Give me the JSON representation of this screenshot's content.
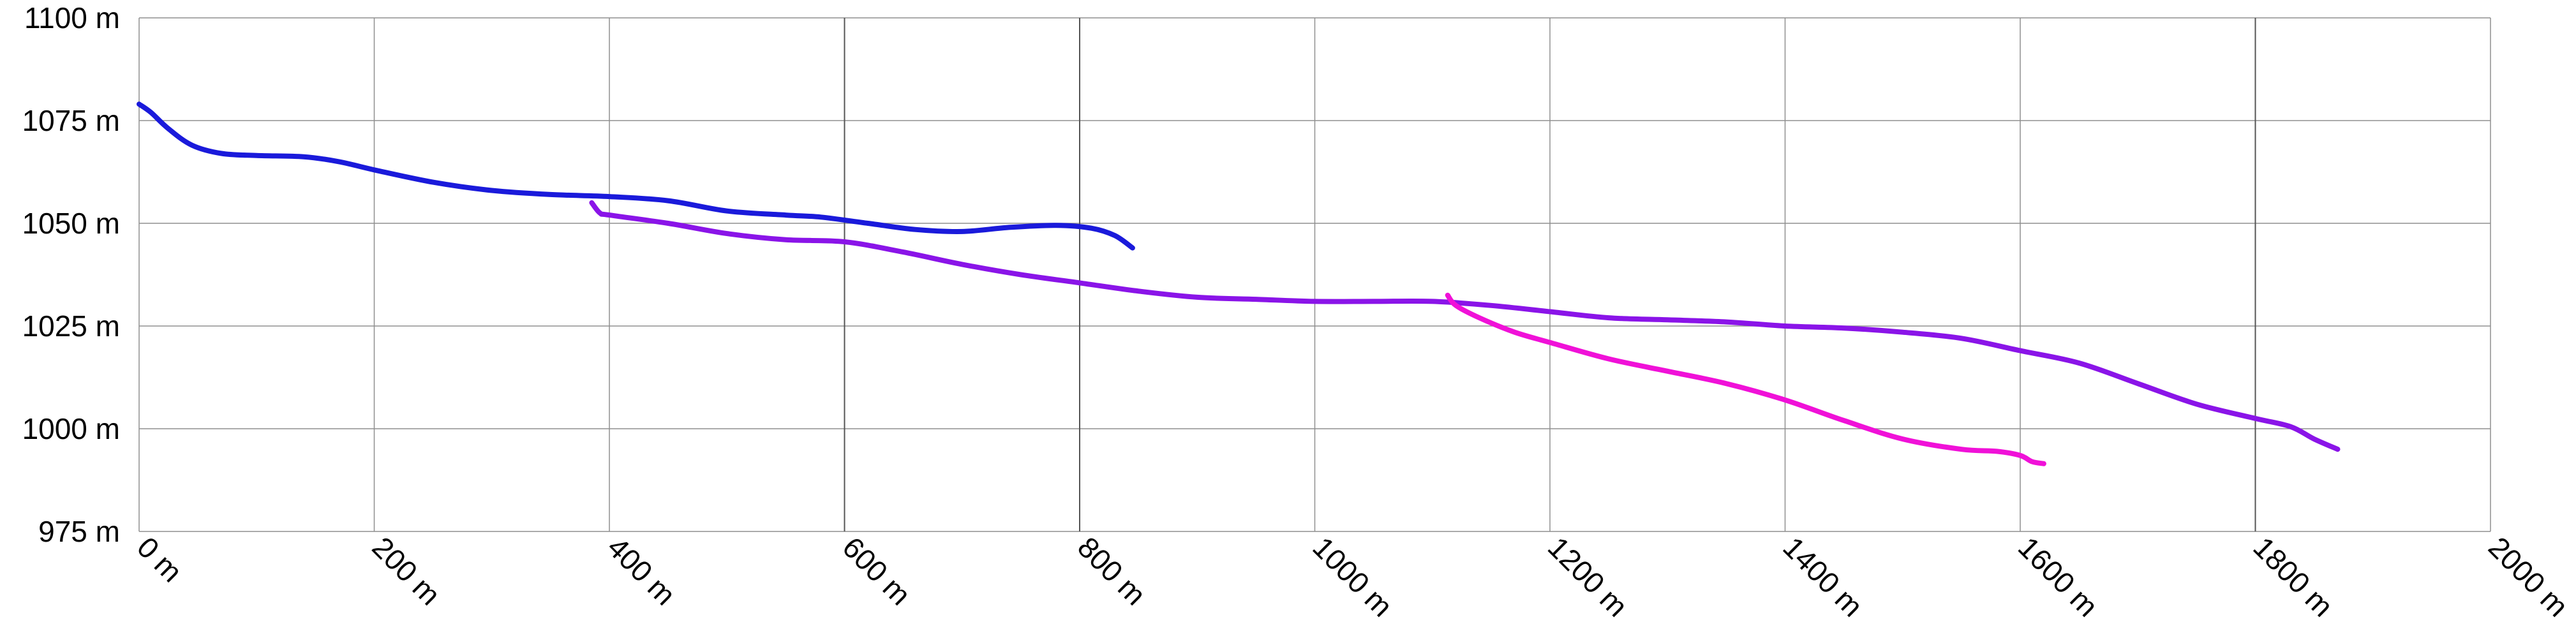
{
  "chart_data": {
    "type": "line",
    "title": "",
    "xlabel": "",
    "ylabel": "",
    "xlim": [
      0,
      2000
    ],
    "ylim": [
      975,
      1100
    ],
    "grid": true,
    "legend": "none",
    "x_ticks": [
      {
        "value": 0,
        "label": "0 m"
      },
      {
        "value": 200,
        "label": "200 m"
      },
      {
        "value": 400,
        "label": "400 m"
      },
      {
        "value": 600,
        "label": "600 m"
      },
      {
        "value": 800,
        "label": "800 m"
      },
      {
        "value": 1000,
        "label": "1000 m"
      },
      {
        "value": 1200,
        "label": "1200 m"
      },
      {
        "value": 1400,
        "label": "1400 m"
      },
      {
        "value": 1600,
        "label": "1600 m"
      },
      {
        "value": 1800,
        "label": "1800 m"
      },
      {
        "value": 2000,
        "label": "2000 m"
      }
    ],
    "y_ticks": [
      {
        "value": 975,
        "label": "975 m"
      },
      {
        "value": 1000,
        "label": "1000 m"
      },
      {
        "value": 1025,
        "label": "1025 m"
      },
      {
        "value": 1050,
        "label": "1050 m"
      },
      {
        "value": 1075,
        "label": "1075 m"
      },
      {
        "value": 1100,
        "label": "1100 m"
      }
    ],
    "series": [
      {
        "color": "#1a1adb",
        "points": [
          [
            0,
            1079
          ],
          [
            10,
            1077
          ],
          [
            25,
            1073
          ],
          [
            45,
            1069
          ],
          [
            70,
            1067
          ],
          [
            100,
            1066.5
          ],
          [
            140,
            1066.2
          ],
          [
            170,
            1065
          ],
          [
            200,
            1063
          ],
          [
            250,
            1060
          ],
          [
            300,
            1058
          ],
          [
            350,
            1057
          ],
          [
            400,
            1056.5
          ],
          [
            450,
            1055.5
          ],
          [
            500,
            1053
          ],
          [
            550,
            1052
          ],
          [
            580,
            1051.5
          ],
          [
            620,
            1050
          ],
          [
            660,
            1048.5
          ],
          [
            700,
            1048
          ],
          [
            740,
            1049
          ],
          [
            780,
            1049.5
          ],
          [
            810,
            1048.8
          ],
          [
            830,
            1047
          ],
          [
            845,
            1044
          ]
        ]
      },
      {
        "color": "#8a14e8",
        "points": [
          [
            385,
            1055
          ],
          [
            392,
            1052.5
          ],
          [
            400,
            1052
          ],
          [
            450,
            1050
          ],
          [
            500,
            1047.5
          ],
          [
            550,
            1046
          ],
          [
            600,
            1045.5
          ],
          [
            650,
            1043
          ],
          [
            700,
            1040
          ],
          [
            750,
            1037.5
          ],
          [
            800,
            1035.5
          ],
          [
            850,
            1033.5
          ],
          [
            900,
            1032
          ],
          [
            950,
            1031.5
          ],
          [
            1000,
            1031
          ],
          [
            1050,
            1031
          ],
          [
            1100,
            1031
          ],
          [
            1150,
            1030
          ],
          [
            1200,
            1028.5
          ],
          [
            1250,
            1027
          ],
          [
            1300,
            1026.5
          ],
          [
            1350,
            1026
          ],
          [
            1400,
            1025
          ],
          [
            1450,
            1024.5
          ],
          [
            1500,
            1023.5
          ],
          [
            1550,
            1022
          ],
          [
            1600,
            1019
          ],
          [
            1650,
            1016
          ],
          [
            1700,
            1011
          ],
          [
            1750,
            1006
          ],
          [
            1800,
            1002.5
          ],
          [
            1830,
            1000.5
          ],
          [
            1850,
            997.5
          ],
          [
            1870,
            995
          ]
        ]
      },
      {
        "color": "#f011d8",
        "points": [
          [
            1113,
            1032.5
          ],
          [
            1120,
            1030
          ],
          [
            1140,
            1027
          ],
          [
            1170,
            1023.5
          ],
          [
            1200,
            1021
          ],
          [
            1250,
            1017
          ],
          [
            1300,
            1014
          ],
          [
            1350,
            1011
          ],
          [
            1400,
            1007
          ],
          [
            1450,
            1002
          ],
          [
            1500,
            997.5
          ],
          [
            1550,
            995
          ],
          [
            1580,
            994.5
          ],
          [
            1600,
            993.5
          ],
          [
            1610,
            992
          ],
          [
            1620,
            991.5
          ]
        ]
      }
    ]
  }
}
